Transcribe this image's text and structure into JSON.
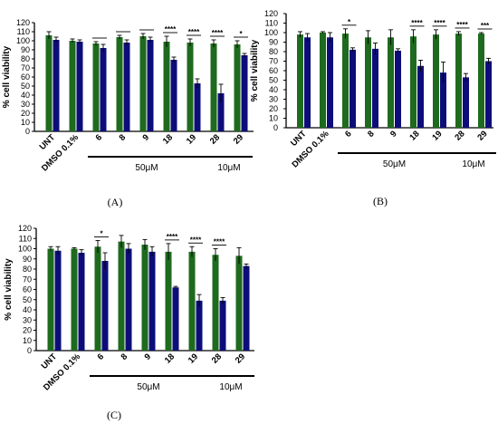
{
  "colors": {
    "green": "#1e6a1e",
    "blue": "#0d0d7a",
    "axis": "#000000"
  },
  "chart_data": [
    {
      "panel": "(A)",
      "type": "bar",
      "ylabel": "% cell viability",
      "ylim": [
        0,
        120
      ],
      "yticks": [
        0,
        10,
        20,
        30,
        40,
        50,
        60,
        70,
        80,
        90,
        100,
        110,
        120
      ],
      "categories": [
        "UNT",
        "DMSO 0.1%",
        "6",
        "8",
        "9",
        "18",
        "19",
        "28",
        "29"
      ],
      "series": [
        {
          "values": [
            106,
            100,
            97,
            104,
            105,
            99,
            98,
            97,
            96
          ],
          "errors": [
            4,
            2,
            2,
            2,
            3,
            6,
            4,
            4,
            4
          ]
        },
        {
          "values": [
            101,
            99,
            92,
            98,
            101,
            79,
            53,
            42,
            84
          ],
          "errors": [
            3,
            2,
            4,
            3,
            3,
            3,
            5,
            10,
            2
          ]
        }
      ],
      "significance": [
        {
          "category": "6",
          "label": ""
        },
        {
          "category": "8",
          "label": ""
        },
        {
          "category": "9",
          "label": ""
        },
        {
          "category": "18",
          "label": "****"
        },
        {
          "category": "19",
          "label": "****"
        },
        {
          "category": "28",
          "label": "****"
        },
        {
          "category": "29",
          "label": "*"
        }
      ],
      "groups": [
        {
          "label": "50μM",
          "from": "6",
          "to": "19"
        },
        {
          "label": "10μM",
          "from": "28",
          "to": "29"
        }
      ]
    },
    {
      "panel": "(B)",
      "type": "bar",
      "ylabel": "% cell viability",
      "ylim": [
        0,
        120
      ],
      "yticks": [
        0,
        10,
        20,
        30,
        40,
        50,
        60,
        70,
        80,
        90,
        100,
        110,
        120
      ],
      "categories": [
        "UNT",
        "DMSO 0.1%",
        "6",
        "8",
        "9",
        "18",
        "19",
        "28",
        "29"
      ],
      "series": [
        {
          "values": [
            98,
            100,
            99,
            95,
            95,
            96,
            98,
            99,
            99
          ],
          "errors": [
            3,
            1,
            5,
            7,
            8,
            7,
            5,
            2,
            1
          ]
        },
        {
          "values": [
            95,
            95,
            82,
            83,
            81,
            65,
            58,
            53,
            70
          ],
          "errors": [
            4,
            5,
            2,
            6,
            2,
            6,
            11,
            4,
            3
          ]
        }
      ],
      "significance": [
        {
          "category": "6",
          "label": "*"
        },
        {
          "category": "18",
          "label": "****"
        },
        {
          "category": "19",
          "label": "****"
        },
        {
          "category": "28",
          "label": "****"
        },
        {
          "category": "29",
          "label": "***"
        }
      ],
      "groups": [
        {
          "label": "50μM",
          "from": "6",
          "to": "19"
        },
        {
          "label": "10μM",
          "from": "28",
          "to": "29"
        }
      ]
    },
    {
      "panel": "(C)",
      "type": "bar",
      "ylabel": "% cell viability",
      "ylim": [
        0,
        120
      ],
      "yticks": [
        0,
        10,
        20,
        30,
        40,
        50,
        60,
        70,
        80,
        90,
        100,
        110,
        120
      ],
      "categories": [
        "UNT",
        "DMSO 0.1%",
        "6",
        "8",
        "9",
        "18",
        "19",
        "28",
        "29"
      ],
      "series": [
        {
          "values": [
            100,
            100,
            102,
            107,
            104,
            97,
            97,
            94,
            93
          ],
          "errors": [
            2,
            1,
            6,
            6,
            5,
            8,
            5,
            6,
            8
          ]
        },
        {
          "values": [
            98,
            96,
            88,
            100,
            97,
            62,
            49,
            49,
            83
          ],
          "errors": [
            4,
            3,
            8,
            5,
            5,
            1,
            6,
            3,
            2
          ]
        }
      ],
      "significance": [
        {
          "category": "6",
          "label": "*"
        },
        {
          "category": "18",
          "label": "****"
        },
        {
          "category": "19",
          "label": "****"
        },
        {
          "category": "28",
          "label": "****"
        }
      ],
      "groups": [
        {
          "label": "50μM",
          "from": "6",
          "to": "19"
        },
        {
          "label": "10μM",
          "from": "28",
          "to": "29"
        }
      ]
    }
  ]
}
